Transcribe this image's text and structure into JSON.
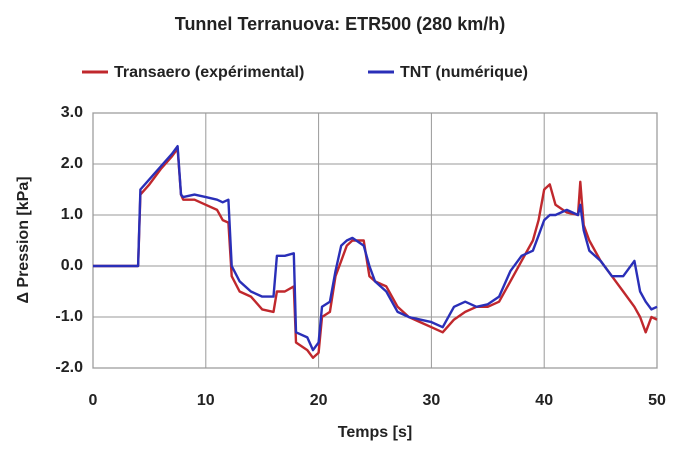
{
  "chart_data": {
    "type": "line",
    "title": "Tunnel Terranuova: ETR500 (280 km/h)",
    "x_label": "Temps [s]",
    "y_label": "Δ Pression [kPa]",
    "x": [
      0,
      4,
      4.2,
      5,
      6,
      7,
      7.5,
      7.8,
      8,
      9,
      10,
      11,
      11.5,
      12,
      12.3,
      13,
      14,
      15,
      16,
      16.3,
      17,
      17.8,
      18,
      19,
      19.5,
      20,
      20.3,
      21,
      21.5,
      22,
      22.5,
      23,
      24,
      24.5,
      25,
      26,
      27,
      28,
      29,
      30,
      31,
      32,
      33,
      34,
      35,
      36,
      37,
      38,
      39,
      39.5,
      40,
      40.5,
      41,
      42,
      43,
      43.2,
      43.5,
      44,
      45,
      46,
      47,
      48,
      48.5,
      49,
      49.5,
      50
    ],
    "series": [
      {
        "name": "Transaero (expérimental)",
        "color": "#c0282d",
        "values": [
          0,
          0,
          1.4,
          1.6,
          1.9,
          2.15,
          2.3,
          1.4,
          1.3,
          1.3,
          1.2,
          1.1,
          0.9,
          0.85,
          -0.2,
          -0.5,
          -0.6,
          -0.85,
          -0.9,
          -0.5,
          -0.5,
          -0.4,
          -1.5,
          -1.65,
          -1.8,
          -1.7,
          -1.0,
          -0.9,
          -0.2,
          0.1,
          0.4,
          0.5,
          0.5,
          -0.2,
          -0.3,
          -0.4,
          -0.8,
          -1.0,
          -1.1,
          -1.2,
          -1.3,
          -1.05,
          -0.9,
          -0.8,
          -0.8,
          -0.7,
          -0.3,
          0.1,
          0.5,
          0.9,
          1.5,
          1.6,
          1.2,
          1.05,
          1.0,
          1.65,
          0.8,
          0.5,
          0.1,
          -0.2,
          -0.5,
          -0.8,
          -1.0,
          -1.3,
          -1.0,
          -1.05
        ]
      },
      {
        "name": "TNT (numérique)",
        "color": "#2a2fb8",
        "values": [
          0,
          0,
          1.5,
          1.7,
          1.95,
          2.2,
          2.35,
          1.4,
          1.35,
          1.4,
          1.35,
          1.3,
          1.25,
          1.3,
          0.0,
          -0.3,
          -0.5,
          -0.6,
          -0.6,
          0.2,
          0.2,
          0.25,
          -1.3,
          -1.4,
          -1.65,
          -1.5,
          -0.8,
          -0.7,
          -0.1,
          0.4,
          0.5,
          0.55,
          0.4,
          0.0,
          -0.3,
          -0.5,
          -0.9,
          -1.0,
          -1.05,
          -1.1,
          -1.2,
          -0.8,
          -0.7,
          -0.8,
          -0.75,
          -0.6,
          -0.1,
          0.2,
          0.3,
          0.6,
          0.9,
          1.0,
          1.0,
          1.1,
          1.0,
          1.2,
          0.7,
          0.3,
          0.1,
          -0.2,
          -0.2,
          0.1,
          -0.5,
          -0.7,
          -0.85,
          -0.8
        ]
      }
    ],
    "xlim": [
      0,
      50
    ],
    "xticks": [
      0,
      10,
      20,
      30,
      40,
      50
    ],
    "ylim": [
      -2,
      3
    ],
    "yticks": [
      {
        "value": 3,
        "label": "3.0"
      },
      {
        "value": 2,
        "label": "2.0"
      },
      {
        "value": 1,
        "label": "1.0"
      },
      {
        "value": 0,
        "label": "0.0"
      },
      {
        "value": -1,
        "label": "-1.0"
      },
      {
        "value": -2,
        "label": "-2.0"
      }
    ],
    "grid": true
  }
}
